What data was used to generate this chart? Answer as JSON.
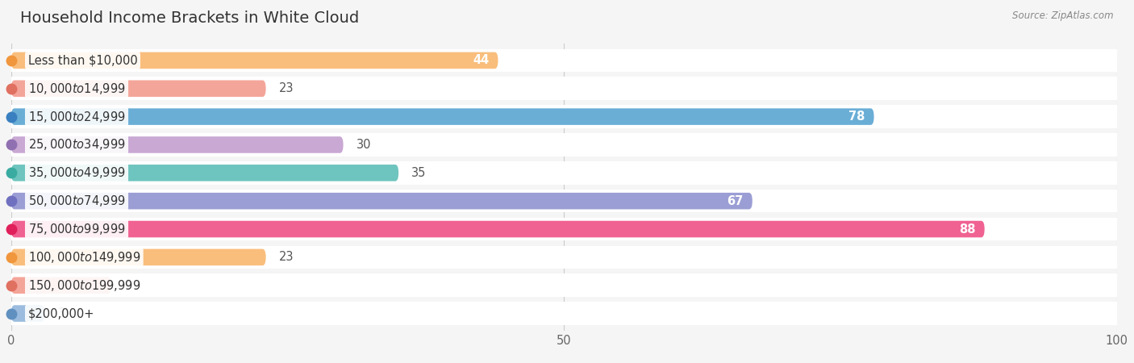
{
  "title": "Household Income Brackets in White Cloud",
  "source": "Source: ZipAtlas.com",
  "categories": [
    "Less than $10,000",
    "$10,000 to $14,999",
    "$15,000 to $24,999",
    "$25,000 to $34,999",
    "$35,000 to $49,999",
    "$50,000 to $74,999",
    "$75,000 to $99,999",
    "$100,000 to $149,999",
    "$150,000 to $199,999",
    "$200,000+"
  ],
  "values": [
    44,
    23,
    78,
    30,
    35,
    67,
    88,
    23,
    9,
    3
  ],
  "bar_colors": [
    "#F9BE7C",
    "#F4A59A",
    "#6AAED6",
    "#C9A8D4",
    "#6EC4BE",
    "#9B9ED4",
    "#F06292",
    "#F9BE7C",
    "#F4A59A",
    "#9BBCDE"
  ],
  "dot_colors": [
    "#F0963C",
    "#E07060",
    "#3A80C0",
    "#9070B0",
    "#3AABA0",
    "#7070C0",
    "#E0205A",
    "#F0963C",
    "#E07060",
    "#6090C0"
  ],
  "xlim": [
    0,
    100
  ],
  "xticks": [
    0,
    50,
    100
  ],
  "background_color": "#f5f5f5",
  "row_bg_color": "#ffffff",
  "label_fontsize": 10.5,
  "title_fontsize": 14,
  "value_label_threshold": 40,
  "value_label_threshold_dark": 40
}
